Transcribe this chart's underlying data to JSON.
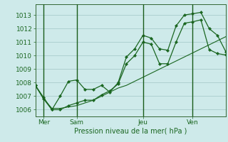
{
  "background_color": "#ceeaea",
  "plot_bg_color": "#ceeaea",
  "grid_color": "#a8cccc",
  "grid_minor_color": "#c0dddd",
  "line_color": "#1a6620",
  "marker_color": "#1a6620",
  "xlabel": "Pression niveau de la mer( hPa )",
  "ylim": [
    1005.5,
    1013.8
  ],
  "yticks": [
    1006,
    1007,
    1008,
    1009,
    1010,
    1011,
    1012,
    1013
  ],
  "day_labels": [
    "Mer",
    "Sam",
    "Jeu",
    "Ven"
  ],
  "n_points": 24,
  "series": [
    [
      1007.8,
      1006.9,
      1006.0,
      1007.0,
      1008.1,
      1008.2,
      1007.5,
      1007.5,
      1007.8,
      1007.3,
      1008.0,
      1009.9,
      1010.5,
      1011.5,
      1011.3,
      1010.5,
      1010.4,
      1012.2,
      1013.0,
      1013.1,
      1013.2,
      1012.0,
      1011.5,
      1010.3
    ],
    [
      1007.8,
      1006.8,
      1006.1,
      1006.1,
      1006.2,
      1006.3,
      1006.5,
      1006.7,
      1007.0,
      1007.3,
      1007.6,
      1007.8,
      1008.1,
      1008.4,
      1008.7,
      1009.0,
      1009.3,
      1009.6,
      1009.9,
      1010.2,
      1010.5,
      1010.8,
      1011.1,
      1011.4
    ],
    [
      1007.8,
      1006.8,
      1006.0,
      1006.0,
      1006.3,
      1006.5,
      1006.7,
      1006.7,
      1007.1,
      1007.4,
      1007.9,
      1009.4,
      1010.0,
      1011.0,
      1010.85,
      1009.4,
      1009.4,
      1011.0,
      1012.4,
      1012.5,
      1012.65,
      1010.45,
      1010.15,
      1010.05
    ]
  ],
  "vline_positions": [
    1,
    5,
    13,
    19
  ]
}
